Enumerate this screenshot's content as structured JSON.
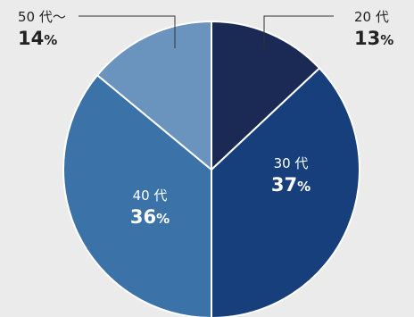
{
  "chart_data": {
    "type": "pie",
    "categories": [
      "20 代",
      "30 代",
      "40 代",
      "50 代〜"
    ],
    "values": [
      13,
      37,
      36,
      14
    ],
    "unit": "%",
    "colors": [
      "#1b2a54",
      "#163f7c",
      "#3b73a8",
      "#6a93be"
    ],
    "label_colors": {
      "outside": "#222222",
      "inside": "#ffffff",
      "leader": "#333333",
      "slice_border": "#ffffff"
    }
  }
}
